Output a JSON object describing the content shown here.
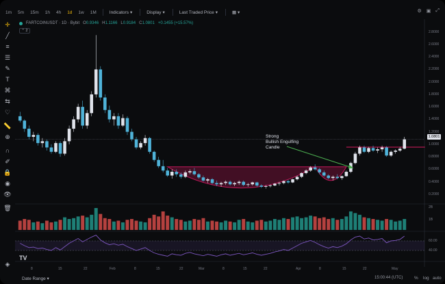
{
  "toolbar": {
    "timeframes": [
      {
        "label": "1m"
      },
      {
        "label": "5m"
      },
      {
        "label": "15m"
      },
      {
        "label": "1h"
      },
      {
        "label": "4h"
      },
      {
        "label": "1d",
        "active": true
      },
      {
        "label": "1w"
      },
      {
        "label": "1M"
      }
    ],
    "indicators_label": "Indicators",
    "display_label": "Display",
    "price_source_label": "Last Traded Price",
    "layout_icon": "layout-icon"
  },
  "legend": {
    "symbol": "FARTCOINUSDT · 1D · Bybit",
    "open_label": "O",
    "open": "0.9346",
    "high_label": "H",
    "high": "1.1166",
    "low_label": "L",
    "low": "0.9184",
    "close_label": "C",
    "close": "1.0801",
    "change": "+0.1455 (+15.57%)",
    "indicator_count": "2"
  },
  "annotation": {
    "text": "Strong\nBullish Engulfing\nCandle"
  },
  "last_price_tag": "1.0801",
  "price_axis": [
    "2.8000",
    "2.6000",
    "2.4000",
    "2.2000",
    "2.0000",
    "1.8000",
    "1.6000",
    "1.4000",
    "1.2000",
    "1.0000",
    "0.8000",
    "0.6000",
    "0.4000",
    "0.2000"
  ],
  "volume_axis": [
    "2B",
    "1B"
  ],
  "rsi_axis": [
    "60.00",
    "40.00"
  ],
  "date_axis": [
    "8",
    "15",
    "22",
    "Feb",
    "8",
    "15",
    "22",
    "Mar",
    "8",
    "15",
    "22",
    "Apr",
    "8",
    "15",
    "22",
    "May"
  ],
  "bottom": {
    "date_range_label": "Date Range",
    "clock": "15:00:44 (UTC)",
    "percent_label": "%",
    "log_label": "log",
    "auto_label": "auto"
  },
  "colors": {
    "up": "#e0e3eb",
    "down": "#4fb3d9",
    "volume_up": "#26a69a",
    "volume_down": "#ef5350",
    "pattern": "#c2185b",
    "resistance": "#d81b60",
    "rsi": "#7e57c2",
    "arrow": "#4caf50"
  },
  "chart_data": {
    "type": "candlestick",
    "candles": [
      [
        1.45,
        1.52,
        1.35,
        1.38
      ],
      [
        1.38,
        1.4,
        1.2,
        1.25
      ],
      [
        1.25,
        1.3,
        1.08,
        1.12
      ],
      [
        1.12,
        1.2,
        1.05,
        1.15
      ],
      [
        1.15,
        1.18,
        0.98,
        1.02
      ],
      [
        1.02,
        1.1,
        0.95,
        1.05
      ],
      [
        1.05,
        1.08,
        0.9,
        0.95
      ],
      [
        0.95,
        1.0,
        0.85,
        0.88
      ],
      [
        0.88,
        1.05,
        0.86,
        1.02
      ],
      [
        1.02,
        1.05,
        0.8,
        0.85
      ],
      [
        0.85,
        1.1,
        0.82,
        1.05
      ],
      [
        1.05,
        1.3,
        1.0,
        1.25
      ],
      [
        1.25,
        1.45,
        1.2,
        1.4
      ],
      [
        1.4,
        1.65,
        1.35,
        1.6
      ],
      [
        1.6,
        1.7,
        1.25,
        1.3
      ],
      [
        1.3,
        1.55,
        1.25,
        1.5
      ],
      [
        1.5,
        1.85,
        1.45,
        1.8
      ],
      [
        1.8,
        2.75,
        1.75,
        2.2
      ],
      [
        2.2,
        2.25,
        1.7,
        1.75
      ],
      [
        1.75,
        1.8,
        1.5,
        1.55
      ],
      [
        1.55,
        1.62,
        1.35,
        1.4
      ],
      [
        1.4,
        1.5,
        1.3,
        1.45
      ],
      [
        1.45,
        1.5,
        1.25,
        1.3
      ],
      [
        1.3,
        1.48,
        1.28,
        1.42
      ],
      [
        1.42,
        1.45,
        1.15,
        1.2
      ],
      [
        1.2,
        1.25,
        1.05,
        1.08
      ],
      [
        1.08,
        1.12,
        0.92,
        0.95
      ],
      [
        0.95,
        1.05,
        0.92,
        1.02
      ],
      [
        1.02,
        1.15,
        0.98,
        1.1
      ],
      [
        1.1,
        1.12,
        0.85,
        0.88
      ],
      [
        0.88,
        0.9,
        0.72,
        0.75
      ],
      [
        0.75,
        0.8,
        0.62,
        0.65
      ],
      [
        0.65,
        0.75,
        0.55,
        0.58
      ],
      [
        0.58,
        0.62,
        0.48,
        0.5
      ],
      [
        0.5,
        0.6,
        0.45,
        0.56
      ],
      [
        0.56,
        0.6,
        0.48,
        0.52
      ],
      [
        0.52,
        0.55,
        0.45,
        0.48
      ],
      [
        0.48,
        0.58,
        0.46,
        0.55
      ],
      [
        0.55,
        0.6,
        0.52,
        0.57
      ],
      [
        0.57,
        0.62,
        0.5,
        0.52
      ],
      [
        0.52,
        0.54,
        0.45,
        0.47
      ],
      [
        0.47,
        0.5,
        0.4,
        0.42
      ],
      [
        0.42,
        0.46,
        0.38,
        0.44
      ],
      [
        0.44,
        0.46,
        0.36,
        0.38
      ],
      [
        0.38,
        0.42,
        0.33,
        0.36
      ],
      [
        0.36,
        0.4,
        0.32,
        0.38
      ],
      [
        0.38,
        0.42,
        0.35,
        0.4
      ],
      [
        0.4,
        0.42,
        0.34,
        0.36
      ],
      [
        0.36,
        0.4,
        0.33,
        0.38
      ],
      [
        0.38,
        0.42,
        0.35,
        0.4
      ],
      [
        0.4,
        0.42,
        0.33,
        0.35
      ],
      [
        0.35,
        0.38,
        0.32,
        0.36
      ],
      [
        0.36,
        0.4,
        0.34,
        0.39
      ],
      [
        0.39,
        0.4,
        0.32,
        0.34
      ],
      [
        0.34,
        0.36,
        0.3,
        0.32
      ],
      [
        0.32,
        0.35,
        0.29,
        0.33
      ],
      [
        0.33,
        0.36,
        0.31,
        0.34
      ],
      [
        0.34,
        0.38,
        0.33,
        0.37
      ],
      [
        0.37,
        0.4,
        0.34,
        0.38
      ],
      [
        0.38,
        0.42,
        0.36,
        0.41
      ],
      [
        0.41,
        0.43,
        0.37,
        0.39
      ],
      [
        0.39,
        0.45,
        0.38,
        0.44
      ],
      [
        0.44,
        0.5,
        0.42,
        0.48
      ],
      [
        0.48,
        0.55,
        0.46,
        0.54
      ],
      [
        0.54,
        0.6,
        0.52,
        0.58
      ],
      [
        0.58,
        0.65,
        0.56,
        0.63
      ],
      [
        0.63,
        0.68,
        0.58,
        0.6
      ],
      [
        0.6,
        0.62,
        0.52,
        0.55
      ],
      [
        0.55,
        0.58,
        0.48,
        0.5
      ],
      [
        0.5,
        0.52,
        0.44,
        0.46
      ],
      [
        0.46,
        0.5,
        0.42,
        0.48
      ],
      [
        0.48,
        0.52,
        0.44,
        0.46
      ],
      [
        0.46,
        0.5,
        0.43,
        0.49
      ],
      [
        0.49,
        0.58,
        0.48,
        0.56
      ],
      [
        0.56,
        0.72,
        0.54,
        0.7
      ],
      [
        0.7,
        0.88,
        0.68,
        0.85
      ],
      [
        0.85,
        0.98,
        0.82,
        0.95
      ],
      [
        0.95,
        0.98,
        0.86,
        0.88
      ],
      [
        0.88,
        0.96,
        0.86,
        0.94
      ],
      [
        0.94,
        0.98,
        0.88,
        0.9
      ],
      [
        0.9,
        0.95,
        0.86,
        0.92
      ],
      [
        0.92,
        0.98,
        0.88,
        0.95
      ],
      [
        0.95,
        0.97,
        0.8,
        0.82
      ],
      [
        0.82,
        0.9,
        0.8,
        0.88
      ],
      [
        0.88,
        0.92,
        0.85,
        0.9
      ],
      [
        0.9,
        0.96,
        0.88,
        0.93
      ],
      [
        0.93,
        1.12,
        0.92,
        1.08
      ]
    ],
    "volume": [
      1.1,
      1.3,
      1.2,
      0.9,
      1.0,
      0.8,
      1.1,
      0.9,
      1.0,
      1.2,
      1.5,
      1.3,
      1.4,
      1.6,
      1.7,
      1.5,
      1.8,
      2.6,
      1.9,
      1.4,
      1.3,
      1.0,
      1.1,
      0.9,
      1.2,
      1.3,
      1.1,
      1.0,
      0.9,
      1.4,
      1.8,
      1.6,
      2.2,
      1.7,
      1.5,
      1.3,
      1.2,
      1.0,
      1.1,
      1.3,
      1.2,
      1.4,
      1.0,
      1.1,
      1.0,
      0.9,
      1.1,
      1.0,
      0.9,
      1.2,
      1.3,
      1.0,
      0.9,
      1.1,
      1.2,
      1.0,
      1.1,
      1.3,
      1.2,
      1.4,
      1.3,
      1.5,
      1.6,
      1.4,
      1.5,
      1.7,
      1.6,
      1.4,
      1.5,
      1.3,
      1.4,
      1.2,
      1.3,
      1.6,
      2.2,
      2.0,
      1.8,
      1.5,
      1.4,
      1.3,
      1.2,
      1.1,
      1.3,
      1.2,
      1.0,
      1.1,
      1.3
    ],
    "rsi": [
      55,
      50,
      46,
      47,
      44,
      45,
      42,
      40,
      46,
      41,
      48,
      55,
      60,
      65,
      58,
      63,
      68,
      72,
      62,
      56,
      52,
      54,
      51,
      53,
      48,
      44,
      40,
      43,
      46,
      40,
      35,
      32,
      30,
      28,
      33,
      31,
      30,
      34,
      36,
      33,
      31,
      29,
      32,
      30,
      28,
      31,
      33,
      30,
      32,
      34,
      31,
      33,
      35,
      32,
      30,
      32,
      34,
      37,
      39,
      42,
      40,
      45,
      50,
      55,
      58,
      61,
      57,
      52,
      48,
      45,
      48,
      46,
      49,
      54,
      62,
      68,
      70,
      64,
      66,
      62,
      63,
      65,
      56,
      60,
      61,
      63,
      70
    ],
    "price_range": [
      0.1,
      2.95
    ],
    "resistance_level": 0.955,
    "rounding_bottoms": [
      {
        "start_index": 33,
        "end_index": 66,
        "low": 0.3,
        "top": 0.64
      },
      {
        "start_index": 66,
        "end_index": 73,
        "low": 0.42,
        "top": 0.64
      }
    ],
    "annotation_target_index": 75,
    "xlabel": "",
    "ylabel": ""
  }
}
